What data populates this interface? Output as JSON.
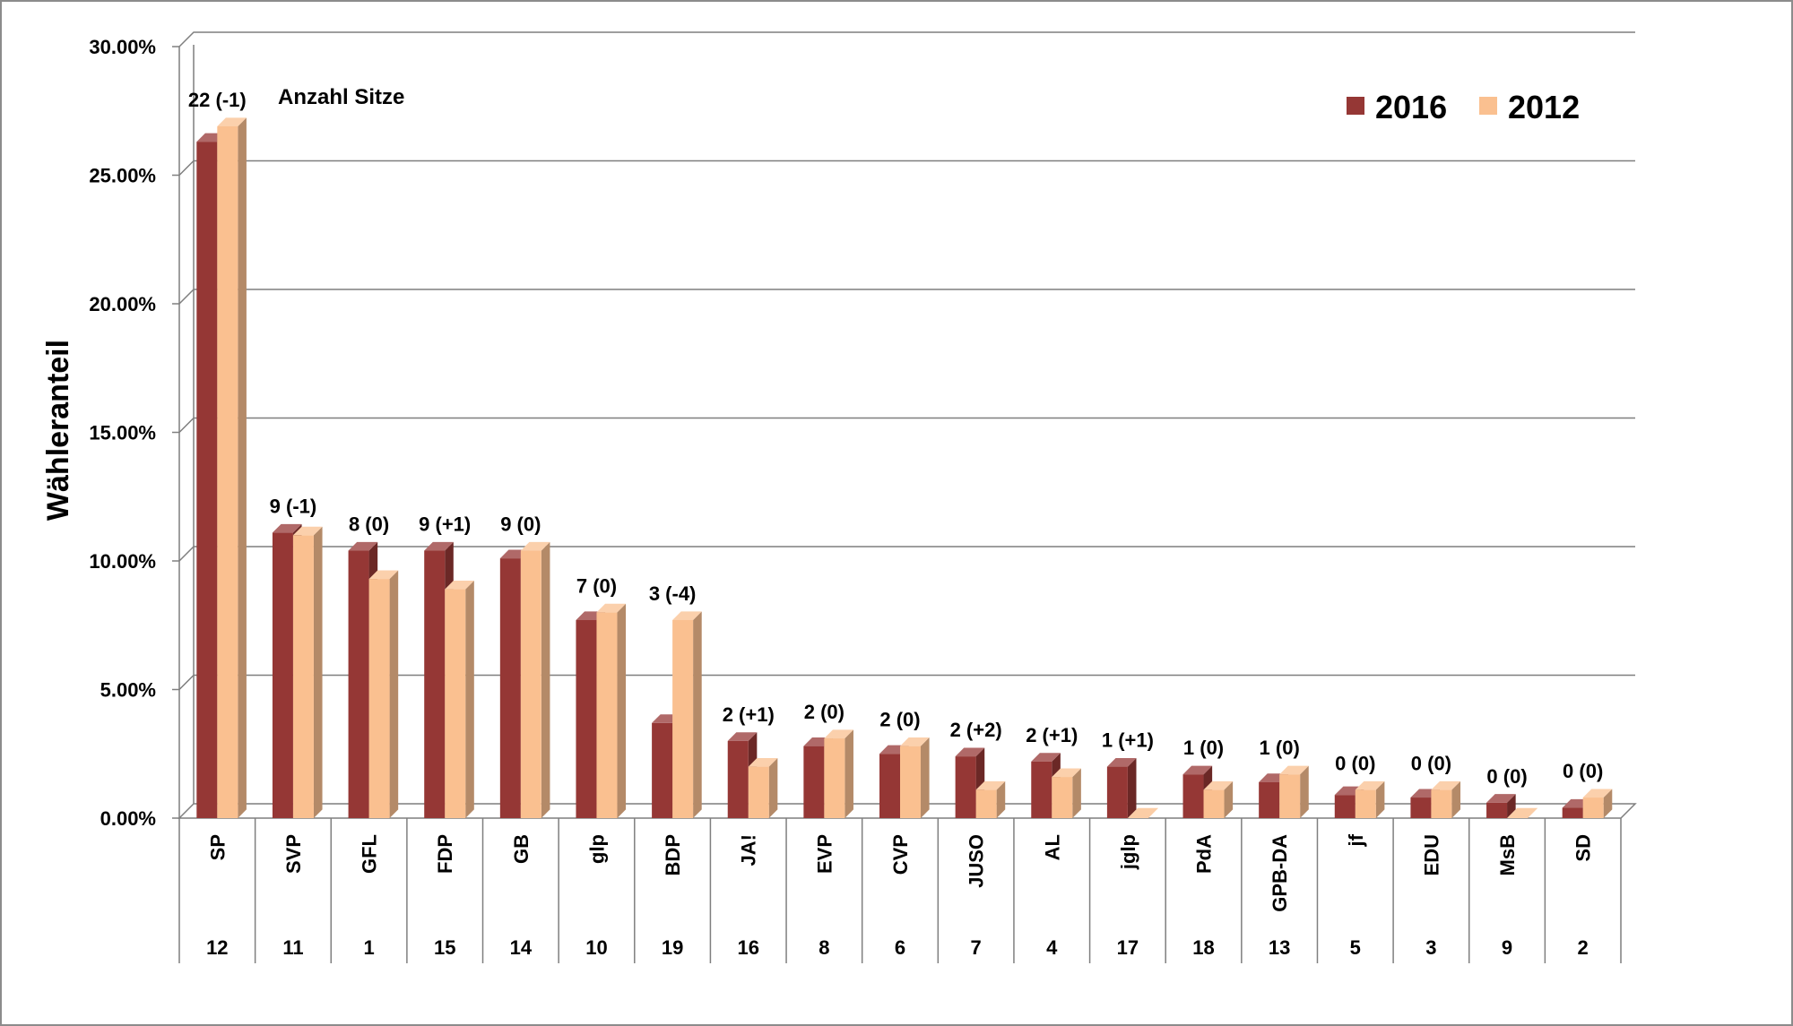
{
  "chart_data": {
    "type": "bar",
    "ylabel": "Wähleranteil",
    "annotation": "Anzahl Sitze",
    "yticks": [
      "0.00%",
      "5.00%",
      "10.00%",
      "15.00%",
      "20.00%",
      "25.00%",
      "30.00%"
    ],
    "ylim": [
      0,
      30
    ],
    "grid": true,
    "legend_position": "top-right",
    "categories": [
      "SP",
      "SVP",
      "GFL",
      "FDP",
      "GB",
      "glp",
      "BDP",
      "JA!",
      "EVP",
      "CVP",
      "JUSO",
      "AL",
      "jglp",
      "PdA",
      "GPB-DA",
      "jf",
      "EDU",
      "MsB",
      "SD"
    ],
    "list_numbers": [
      "12",
      "11",
      "1",
      "15",
      "14",
      "10",
      "19",
      "16",
      "8",
      "6",
      "7",
      "4",
      "17",
      "18",
      "13",
      "5",
      "3",
      "9",
      "2"
    ],
    "seat_labels": [
      "22 (-1)",
      "9 (-1)",
      "8 (0)",
      "9 (+1)",
      "9 (0)",
      "7 (0)",
      "3 (-4)",
      "2 (+1)",
      "2 (0)",
      "2 (0)",
      "2 (+2)",
      "2 (+1)",
      "1 (+1)",
      "1 (0)",
      "1 (0)",
      "0 (0)",
      "0 (0)",
      "0 (0)",
      "0 (0)"
    ],
    "series": [
      {
        "name": "2016",
        "color": "#953735",
        "values": [
          26.3,
          11.1,
          10.4,
          10.4,
          10.1,
          7.7,
          3.7,
          3.0,
          2.8,
          2.5,
          2.4,
          2.2,
          2.0,
          1.7,
          1.4,
          0.9,
          0.8,
          0.6,
          0.4
        ]
      },
      {
        "name": "2012",
        "color": "#FAC090",
        "values": [
          26.9,
          11.0,
          9.3,
          8.9,
          10.4,
          8.0,
          7.7,
          2.0,
          3.1,
          2.8,
          1.1,
          1.6,
          0.0,
          1.1,
          1.7,
          1.1,
          1.1,
          0.0,
          0.8
        ]
      }
    ]
  }
}
